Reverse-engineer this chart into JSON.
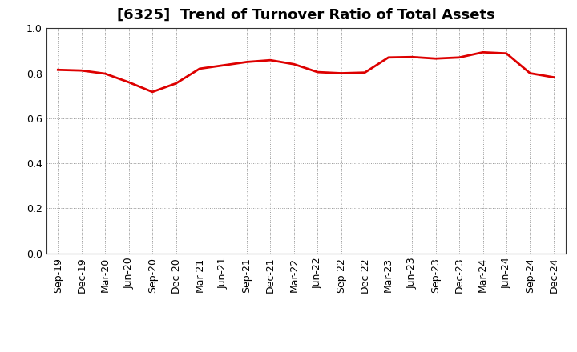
{
  "title": "[6325]  Trend of Turnover Ratio of Total Assets",
  "labels": [
    "Sep-19",
    "Dec-19",
    "Mar-20",
    "Jun-20",
    "Sep-20",
    "Dec-20",
    "Mar-21",
    "Jun-21",
    "Sep-21",
    "Dec-21",
    "Mar-22",
    "Jun-22",
    "Sep-22",
    "Dec-22",
    "Mar-23",
    "Jun-23",
    "Sep-23",
    "Dec-23",
    "Mar-24",
    "Jun-24",
    "Sep-24",
    "Dec-24"
  ],
  "values": [
    0.815,
    0.812,
    0.798,
    0.76,
    0.717,
    0.755,
    0.82,
    0.835,
    0.85,
    0.858,
    0.84,
    0.805,
    0.8,
    0.803,
    0.87,
    0.872,
    0.865,
    0.87,
    0.893,
    0.888,
    0.8,
    0.782
  ],
  "line_color": "#dd0000",
  "line_width": 2.0,
  "ylim": [
    0.0,
    1.0
  ],
  "yticks": [
    0.0,
    0.2,
    0.4,
    0.6,
    0.8,
    1.0
  ],
  "bg_color": "#ffffff",
  "grid_color": "#999999",
  "title_fontsize": 13,
  "tick_fontsize": 9
}
